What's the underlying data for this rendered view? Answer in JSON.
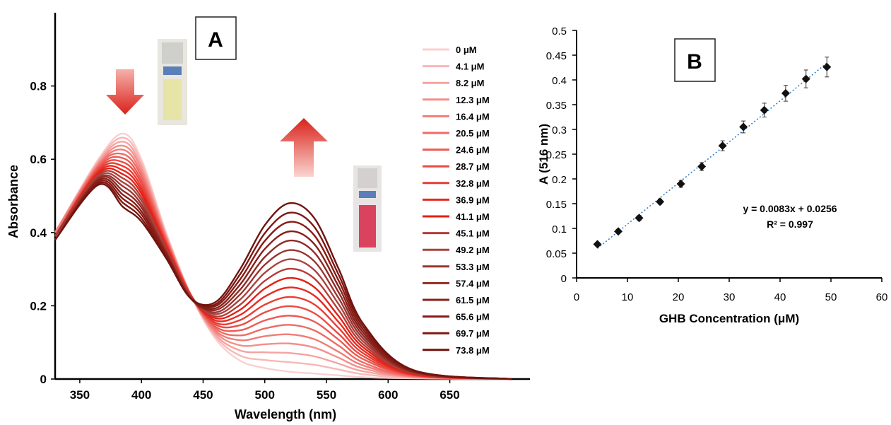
{
  "chart_data": [
    {
      "type": "line",
      "panel_label": "A",
      "x_label": "Wavelength (nm)",
      "y_label": "Absorbance",
      "xlim": [
        330,
        715
      ],
      "xticks": [
        350,
        400,
        450,
        500,
        550,
        600,
        650
      ],
      "ylim": [
        0,
        1
      ],
      "yticks": [
        0,
        0.2,
        0.4,
        0.6,
        0.8
      ],
      "x": [
        330,
        365,
        385,
        400,
        420,
        440,
        460,
        480,
        500,
        520,
        540,
        560,
        580,
        620,
        700
      ],
      "series": [
        {
          "name": "0 μM",
          "color": "#f9d0cf",
          "values": [
            0.4,
            0.6,
            0.67,
            0.6,
            0.4,
            0.23,
            0.11,
            0.05,
            0.03,
            0.02,
            0.015,
            0.01,
            0.005,
            0.002,
            0
          ]
        },
        {
          "name": "4.1 μM",
          "color": "#f7b8b6",
          "values": [
            0.4,
            0.596,
            0.659,
            0.591,
            0.396,
            0.23,
            0.116,
            0.064,
            0.052,
            0.046,
            0.039,
            0.026,
            0.013,
            0.003,
            0
          ]
        },
        {
          "name": "8.2 μM",
          "color": "#f5a3a0",
          "values": [
            0.4,
            0.592,
            0.648,
            0.581,
            0.392,
            0.23,
            0.121,
            0.078,
            0.073,
            0.071,
            0.062,
            0.042,
            0.021,
            0.005,
            0
          ]
        },
        {
          "name": "12.3 μM",
          "color": "#f28f8b",
          "values": [
            0.4,
            0.588,
            0.637,
            0.572,
            0.388,
            0.23,
            0.127,
            0.092,
            0.095,
            0.097,
            0.086,
            0.058,
            0.029,
            0.006,
            0
          ]
        },
        {
          "name": "16.4 μM",
          "color": "#f07c77",
          "values": [
            0.4,
            0.584,
            0.626,
            0.562,
            0.384,
            0.23,
            0.132,
            0.106,
            0.117,
            0.122,
            0.109,
            0.074,
            0.037,
            0.007,
            0
          ]
        },
        {
          "name": "20.5 μM",
          "color": "#ee6b65",
          "values": [
            0.39,
            0.581,
            0.614,
            0.553,
            0.381,
            0.23,
            0.138,
            0.119,
            0.138,
            0.148,
            0.133,
            0.091,
            0.045,
            0.008,
            0
          ]
        },
        {
          "name": "24.6 μM",
          "color": "#ec5a53",
          "values": [
            0.39,
            0.577,
            0.603,
            0.543,
            0.377,
            0.23,
            0.143,
            0.133,
            0.16,
            0.173,
            0.157,
            0.107,
            0.054,
            0.01,
            0
          ]
        },
        {
          "name": "28.7 μM",
          "color": "#ea4a42",
          "values": [
            0.39,
            0.573,
            0.592,
            0.534,
            0.373,
            0.23,
            0.149,
            0.147,
            0.182,
            0.199,
            0.18,
            0.123,
            0.062,
            0.011,
            0
          ]
        },
        {
          "name": "32.8 μM",
          "color": "#e83c33",
          "values": [
            0.39,
            0.569,
            0.581,
            0.524,
            0.369,
            0.23,
            0.154,
            0.161,
            0.203,
            0.224,
            0.204,
            0.139,
            0.07,
            0.012,
            0
          ]
        },
        {
          "name": "36.9 μM",
          "color": "#e62a20",
          "values": [
            0.39,
            0.565,
            0.57,
            0.515,
            0.365,
            0.225,
            0.16,
            0.175,
            0.225,
            0.25,
            0.228,
            0.155,
            0.078,
            0.013,
            0
          ]
        },
        {
          "name": "41.1 μM",
          "color": "#e42016",
          "values": [
            0.39,
            0.561,
            0.559,
            0.506,
            0.361,
            0.225,
            0.166,
            0.189,
            0.247,
            0.276,
            0.251,
            0.171,
            0.086,
            0.015,
            0
          ]
        },
        {
          "name": "45.1 μM",
          "color": "#b53d38",
          "values": [
            0.39,
            0.557,
            0.548,
            0.496,
            0.357,
            0.225,
            0.171,
            0.203,
            0.268,
            0.301,
            0.275,
            0.188,
            0.094,
            0.016,
            0
          ]
        },
        {
          "name": "49.2 μM",
          "color": "#a8423e",
          "values": [
            0.39,
            0.553,
            0.537,
            0.487,
            0.353,
            0.225,
            0.177,
            0.217,
            0.29,
            0.327,
            0.298,
            0.204,
            0.102,
            0.017,
            0
          ]
        },
        {
          "name": "53.3 μM",
          "color": "#9a3530",
          "values": [
            0.39,
            0.549,
            0.526,
            0.477,
            0.349,
            0.225,
            0.182,
            0.231,
            0.312,
            0.352,
            0.322,
            0.22,
            0.11,
            0.018,
            0
          ]
        },
        {
          "name": "57.4 μM",
          "color": "#8f2a25",
          "values": [
            0.38,
            0.546,
            0.514,
            0.468,
            0.346,
            0.22,
            0.188,
            0.244,
            0.333,
            0.378,
            0.346,
            0.236,
            0.118,
            0.02,
            0
          ]
        },
        {
          "name": "61.5 μM",
          "color": "#861f1a",
          "values": [
            0.38,
            0.542,
            0.503,
            0.458,
            0.342,
            0.22,
            0.193,
            0.258,
            0.355,
            0.403,
            0.369,
            0.252,
            0.126,
            0.021,
            0
          ]
        },
        {
          "name": "65.6 μM",
          "color": "#8a1a14",
          "values": [
            0.38,
            0.538,
            0.492,
            0.449,
            0.338,
            0.22,
            0.199,
            0.272,
            0.377,
            0.429,
            0.393,
            0.268,
            0.134,
            0.022,
            0
          ]
        },
        {
          "name": "69.7 μM",
          "color": "#7d1712",
          "values": [
            0.38,
            0.534,
            0.481,
            0.439,
            0.334,
            0.22,
            0.204,
            0.286,
            0.398,
            0.454,
            0.416,
            0.284,
            0.142,
            0.024,
            0
          ]
        },
        {
          "name": "73.8 μM",
          "color": "#70130e",
          "values": [
            0.38,
            0.53,
            0.47,
            0.43,
            0.33,
            0.22,
            0.21,
            0.3,
            0.42,
            0.48,
            0.44,
            0.3,
            0.15,
            0.025,
            0
          ]
        }
      ]
    },
    {
      "type": "scatter",
      "panel_label": "B",
      "x_label": "GHB Concentration (μM)",
      "y_label": "A (516 nm)",
      "xlim": [
        0,
        60
      ],
      "xticks": [
        0,
        10,
        20,
        30,
        40,
        50,
        60
      ],
      "ylim": [
        0,
        0.5
      ],
      "yticks": [
        0,
        0.05,
        0.1,
        0.15,
        0.2,
        0.25,
        0.3,
        0.35,
        0.4,
        0.45,
        0.5
      ],
      "x": [
        4.1,
        8.2,
        12.3,
        16.4,
        20.5,
        24.6,
        28.7,
        32.8,
        36.9,
        41.1,
        45.1,
        49.2
      ],
      "series": [
        {
          "color": "#111111",
          "values": [
            0.068,
            0.094,
            0.121,
            0.154,
            0.19,
            0.225,
            0.267,
            0.305,
            0.339,
            0.373,
            0.402,
            0.426
          ],
          "errors": [
            0.004,
            0.004,
            0.005,
            0.005,
            0.007,
            0.008,
            0.01,
            0.012,
            0.014,
            0.016,
            0.018,
            0.02
          ]
        }
      ],
      "trendline": {
        "slope": 0.0083,
        "intercept": 0.0256,
        "color": "#3a7fc4"
      },
      "equation": "y = 0.0083x + 0.0256",
      "r_squared": "R² = 0.997"
    }
  ]
}
